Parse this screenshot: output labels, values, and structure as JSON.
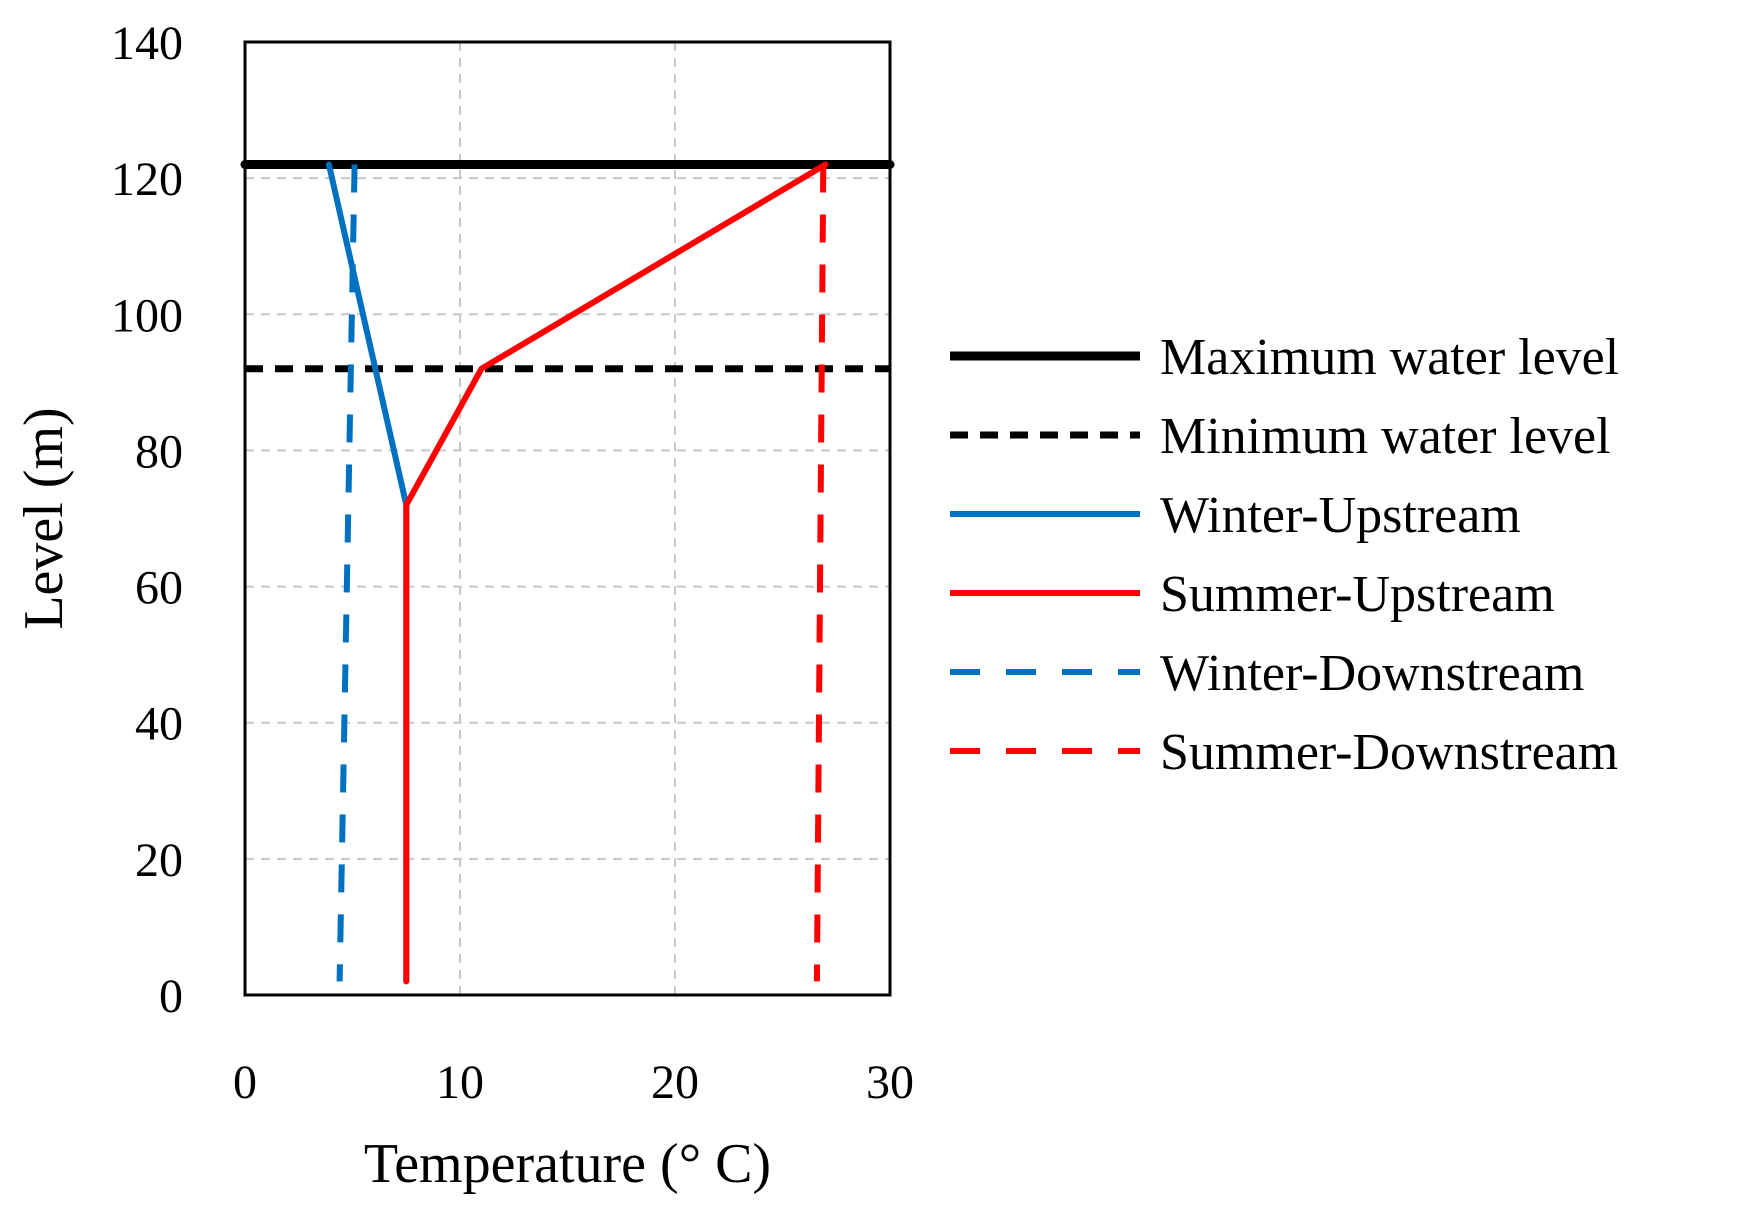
{
  "chart_data": {
    "type": "line",
    "title": "",
    "xlabel": "Temperature (° C)",
    "ylabel": "Level (m)",
    "xlim": [
      0,
      30
    ],
    "ylim": [
      0,
      140
    ],
    "x_ticks": [
      0,
      10,
      20,
      30
    ],
    "y_ticks": [
      0,
      20,
      40,
      60,
      80,
      100,
      120,
      140
    ],
    "x_tick_labels": [
      "0",
      "10",
      "20",
      "30"
    ],
    "y_tick_labels": [
      "0",
      "20",
      "40",
      "60",
      "80",
      "100",
      "120",
      "140"
    ],
    "grid": true,
    "legend_position": "right",
    "series": [
      {
        "name": "Maximum water level",
        "color": "#000000",
        "dash": "solid",
        "points": [
          [
            0,
            122
          ],
          [
            30,
            122
          ]
        ]
      },
      {
        "name": "Minimum water level",
        "color": "#000000",
        "dash": "dashed",
        "points": [
          [
            0,
            92
          ],
          [
            30,
            92
          ]
        ]
      },
      {
        "name": "Winter-Upstream",
        "color": "#0070C0",
        "dash": "solid",
        "points": [
          [
            3.9,
            122
          ],
          [
            7.5,
            72
          ],
          [
            7.5,
            2
          ]
        ]
      },
      {
        "name": "Summer-Upstream",
        "color": "#FF0000",
        "dash": "solid",
        "points": [
          [
            27,
            122
          ],
          [
            11,
            92
          ],
          [
            7.5,
            72
          ],
          [
            7.5,
            2
          ]
        ]
      },
      {
        "name": "Winter-Downstream",
        "color": "#0070C0",
        "dash": "dashed",
        "points": [
          [
            5.1,
            122
          ],
          [
            4.4,
            2
          ]
        ]
      },
      {
        "name": "Summer-Downstream",
        "color": "#FF0000",
        "dash": "dashed",
        "points": [
          [
            26.9,
            122
          ],
          [
            26.6,
            2
          ]
        ]
      }
    ]
  }
}
